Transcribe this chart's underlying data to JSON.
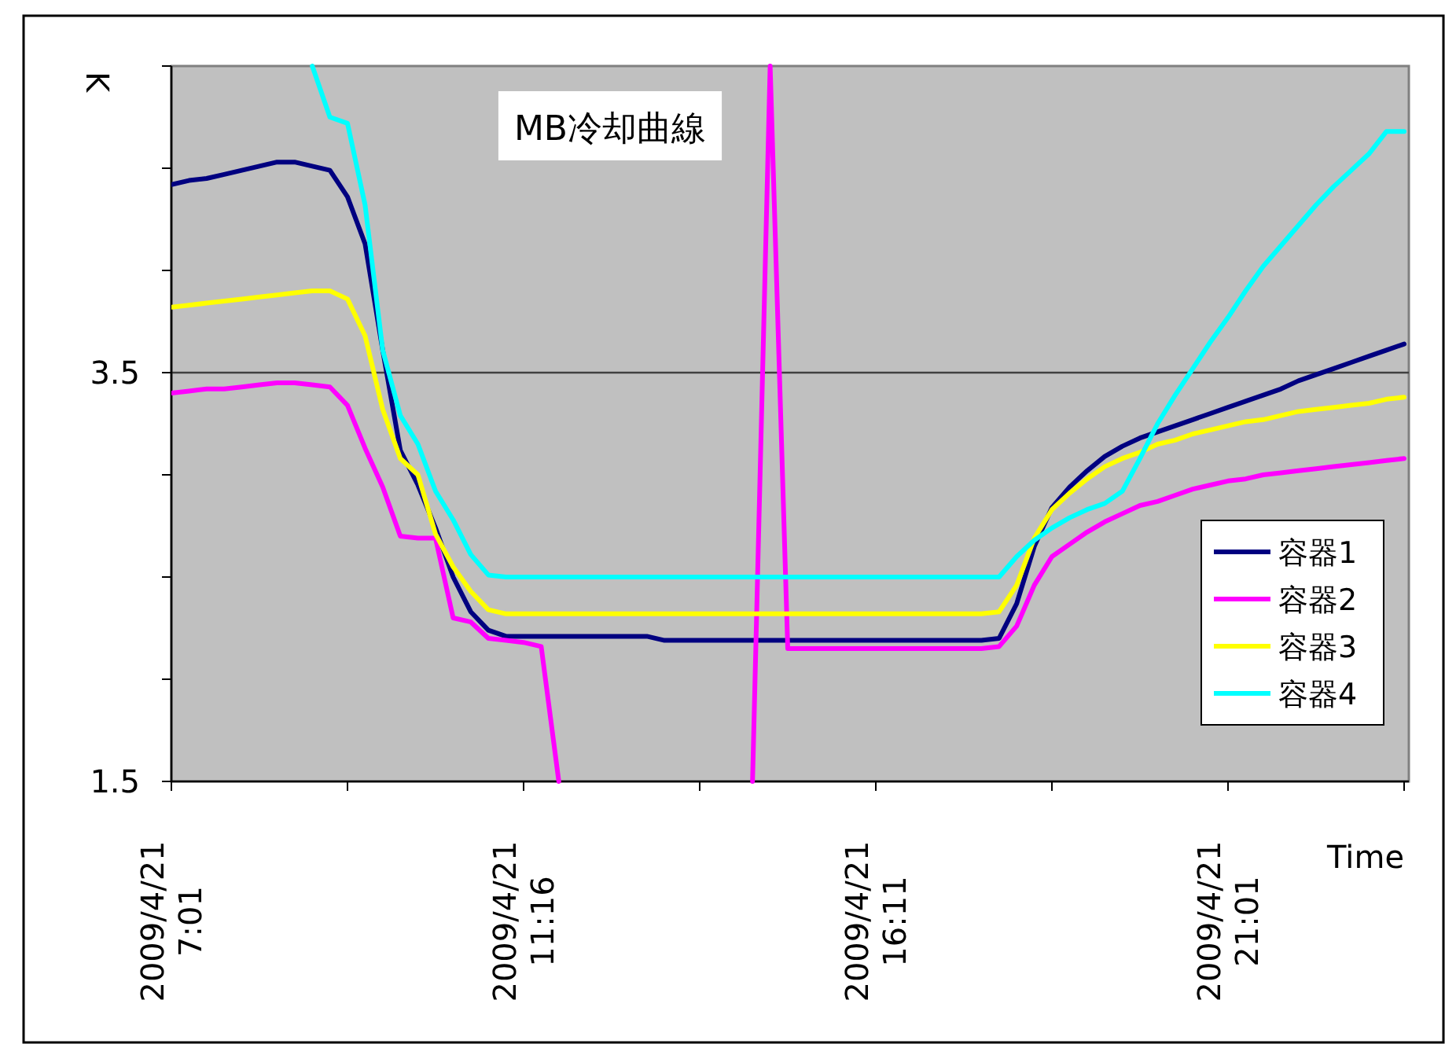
{
  "chart_data": {
    "type": "line",
    "title": "MB冷却曲線",
    "xlabel": "Time",
    "ylabel": "K",
    "ylim": [
      1.5,
      5.0
    ],
    "yticks": [
      1.5,
      {
        "value": 2.0,
        "label": null
      },
      {
        "value": 2.5,
        "label": null
      },
      {
        "value": 3.0,
        "label": null
      },
      3.5,
      {
        "value": 4.0,
        "label": null
      },
      {
        "value": 4.5,
        "label": null
      },
      {
        "value": 5.0,
        "label": null
      }
    ],
    "ref_lines": [
      {
        "axis": "y",
        "value": 3.5,
        "label": null,
        "color": "#404040"
      }
    ],
    "legend": "bottom right",
    "line_style": "solid",
    "categories": [
      "2009/4/21 7:01",
      null,
      null,
      null,
      null,
      null,
      null,
      null,
      null,
      null,
      null,
      null,
      null,
      null,
      null,
      null,
      null,
      null,
      null,
      null,
      "2009/4/21 11:16",
      null,
      null,
      null,
      null,
      null,
      null,
      null,
      null,
      null,
      null,
      null,
      null,
      null,
      null,
      null,
      null,
      null,
      null,
      null,
      "2009/4/21 16:11",
      null,
      null,
      null,
      null,
      null,
      null,
      null,
      null,
      null,
      null,
      null,
      null,
      null,
      null,
      null,
      null,
      null,
      null,
      null,
      "2009/4/21 21:01",
      null,
      null,
      null,
      null,
      null,
      null,
      null,
      null,
      null,
      null
    ],
    "series": [
      {
        "name": "容器1",
        "color": "#000080",
        "values": [
          4.42,
          4.44,
          4.45,
          4.47,
          4.49,
          4.51,
          4.53,
          4.53,
          4.51,
          4.49,
          4.36,
          4.13,
          3.61,
          3.12,
          2.95,
          2.74,
          2.5,
          2.33,
          2.24,
          2.21,
          2.21,
          2.21,
          2.21,
          2.21,
          2.21,
          2.21,
          2.21,
          2.21,
          2.19,
          2.19,
          2.19,
          2.19,
          2.19,
          2.19,
          2.19,
          2.19,
          2.19,
          2.19,
          2.19,
          2.19,
          2.19,
          2.19,
          2.19,
          2.19,
          2.19,
          2.19,
          2.19,
          2.2,
          2.37,
          2.65,
          2.84,
          2.94,
          3.02,
          3.09,
          3.14,
          3.18,
          3.21,
          3.24,
          3.27,
          3.3,
          3.33,
          3.36,
          3.39,
          3.42,
          3.46,
          3.49,
          3.52,
          3.55,
          3.58,
          3.61,
          3.64
        ]
      },
      {
        "name": "容器2",
        "color": "#ff00ff",
        "values": [
          3.4,
          3.41,
          3.42,
          3.42,
          3.43,
          3.44,
          3.45,
          3.45,
          3.44,
          3.43,
          3.34,
          3.13,
          2.94,
          2.7,
          2.69,
          2.69,
          2.3,
          2.28,
          2.2,
          2.19,
          2.18,
          2.16,
          1.5,
          null,
          null,
          null,
          null,
          null,
          null,
          null,
          null,
          null,
          null,
          1.5,
          5.0,
          2.15,
          2.15,
          2.15,
          2.15,
          2.15,
          2.15,
          2.15,
          2.15,
          2.15,
          2.15,
          2.15,
          2.15,
          2.16,
          2.26,
          2.46,
          2.6,
          2.66,
          2.72,
          2.77,
          2.81,
          2.85,
          2.87,
          2.9,
          2.93,
          2.95,
          2.97,
          2.98,
          3.0,
          3.01,
          3.02,
          3.03,
          3.04,
          3.05,
          3.06,
          3.07,
          3.08
        ]
      },
      {
        "name": "容器3",
        "color": "#ffff00",
        "values": [
          3.82,
          3.83,
          3.84,
          3.85,
          3.86,
          3.87,
          3.88,
          3.89,
          3.9,
          3.9,
          3.86,
          3.68,
          3.32,
          3.08,
          3.0,
          2.71,
          2.55,
          2.43,
          2.34,
          2.32,
          2.32,
          2.32,
          2.32,
          2.32,
          2.32,
          2.32,
          2.32,
          2.32,
          2.32,
          2.32,
          2.32,
          2.32,
          2.32,
          2.32,
          2.32,
          2.32,
          2.32,
          2.32,
          2.32,
          2.32,
          2.32,
          2.32,
          2.32,
          2.32,
          2.32,
          2.32,
          2.32,
          2.33,
          2.46,
          2.69,
          2.83,
          2.91,
          2.98,
          3.04,
          3.08,
          3.11,
          3.15,
          3.17,
          3.2,
          3.22,
          3.24,
          3.26,
          3.27,
          3.29,
          3.31,
          3.32,
          3.33,
          3.34,
          3.35,
          3.37,
          3.38
        ]
      },
      {
        "name": "容器4",
        "color": "#00ffff",
        "values": [
          null,
          null,
          null,
          null,
          null,
          null,
          null,
          null,
          5.0,
          4.75,
          4.72,
          4.32,
          3.61,
          3.29,
          3.15,
          2.92,
          2.78,
          2.61,
          2.51,
          2.5,
          2.5,
          2.5,
          2.5,
          2.5,
          2.5,
          2.5,
          2.5,
          2.5,
          2.5,
          2.5,
          2.5,
          2.5,
          2.5,
          2.5,
          2.5,
          2.5,
          2.5,
          2.5,
          2.5,
          2.5,
          2.5,
          2.5,
          2.5,
          2.5,
          2.5,
          2.5,
          2.5,
          2.5,
          2.6,
          2.68,
          2.74,
          2.79,
          2.83,
          2.86,
          2.92,
          3.08,
          3.25,
          3.39,
          3.52,
          3.65,
          3.77,
          3.9,
          4.02,
          4.12,
          4.22,
          4.32,
          4.41,
          4.49,
          4.57,
          4.68,
          4.68
        ]
      }
    ]
  }
}
